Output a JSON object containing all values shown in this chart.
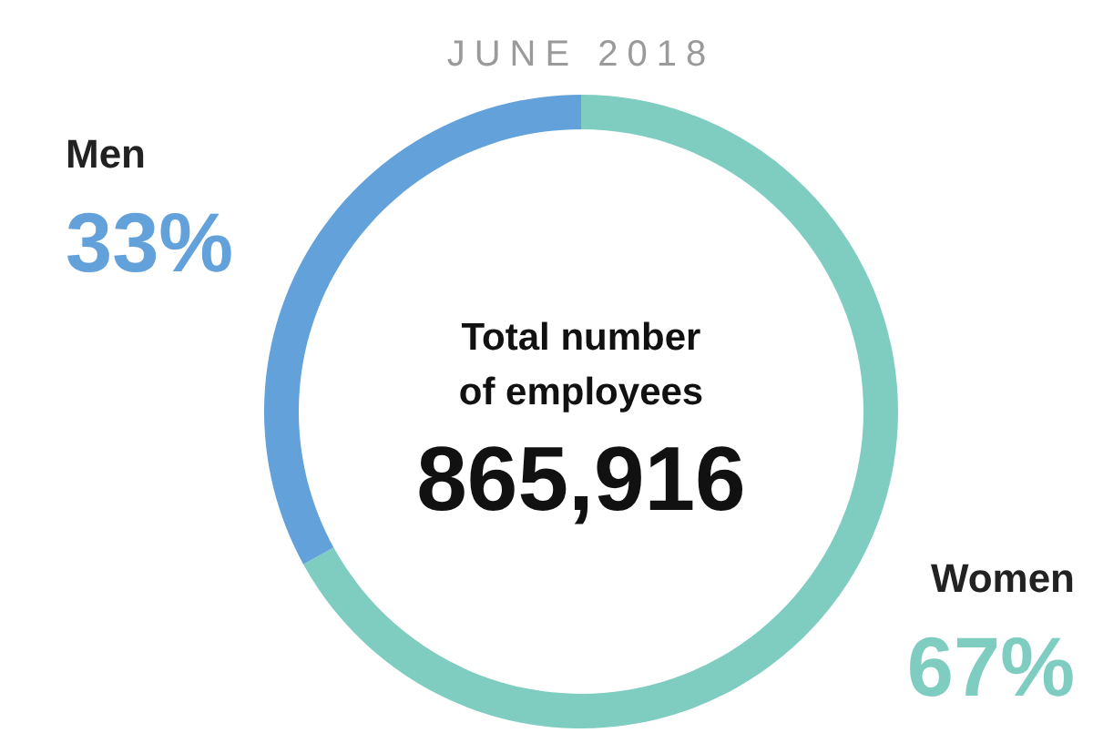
{
  "chart_data": {
    "type": "donut",
    "title": "JUNE 2018",
    "categories": [
      "Women",
      "Men"
    ],
    "values": [
      67,
      33
    ],
    "colors": [
      "#7ecdc0",
      "#62a1d9"
    ],
    "value_labels": [
      "67%",
      "33%"
    ],
    "annotations": [
      "Total number",
      "of employees",
      "865,916"
    ]
  }
}
